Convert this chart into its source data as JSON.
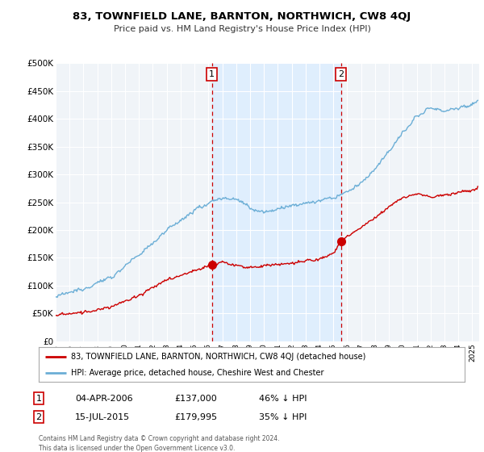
{
  "title": "83, TOWNFIELD LANE, BARNTON, NORTHWICH, CW8 4QJ",
  "subtitle": "Price paid vs. HM Land Registry's House Price Index (HPI)",
  "ylim": [
    0,
    500000
  ],
  "yticks": [
    0,
    50000,
    100000,
    150000,
    200000,
    250000,
    300000,
    350000,
    400000,
    450000,
    500000
  ],
  "ytick_labels": [
    "£0",
    "£50K",
    "£100K",
    "£150K",
    "£200K",
    "£250K",
    "£300K",
    "£350K",
    "£400K",
    "£450K",
    "£500K"
  ],
  "xlim_start": 1995.0,
  "xlim_end": 2025.5,
  "hpi_color": "#6baed6",
  "price_color": "#cc0000",
  "shade_color": "#ddeeff",
  "marker1_x": 2006.25,
  "marker1_y": 137000,
  "marker2_x": 2015.54,
  "marker2_y": 179995,
  "sale1_date": "04-APR-2006",
  "sale1_price": "£137,000",
  "sale1_note": "46% ↓ HPI",
  "sale2_date": "15-JUL-2015",
  "sale2_price": "£179,995",
  "sale2_note": "35% ↓ HPI",
  "legend_label_price": "83, TOWNFIELD LANE, BARNTON, NORTHWICH, CW8 4QJ (detached house)",
  "legend_label_hpi": "HPI: Average price, detached house, Cheshire West and Chester",
  "footnote": "Contains HM Land Registry data © Crown copyright and database right 2024.\nThis data is licensed under the Open Government Licence v3.0.",
  "background_color": "#ffffff",
  "plot_bg_color": "#f0f4f8"
}
